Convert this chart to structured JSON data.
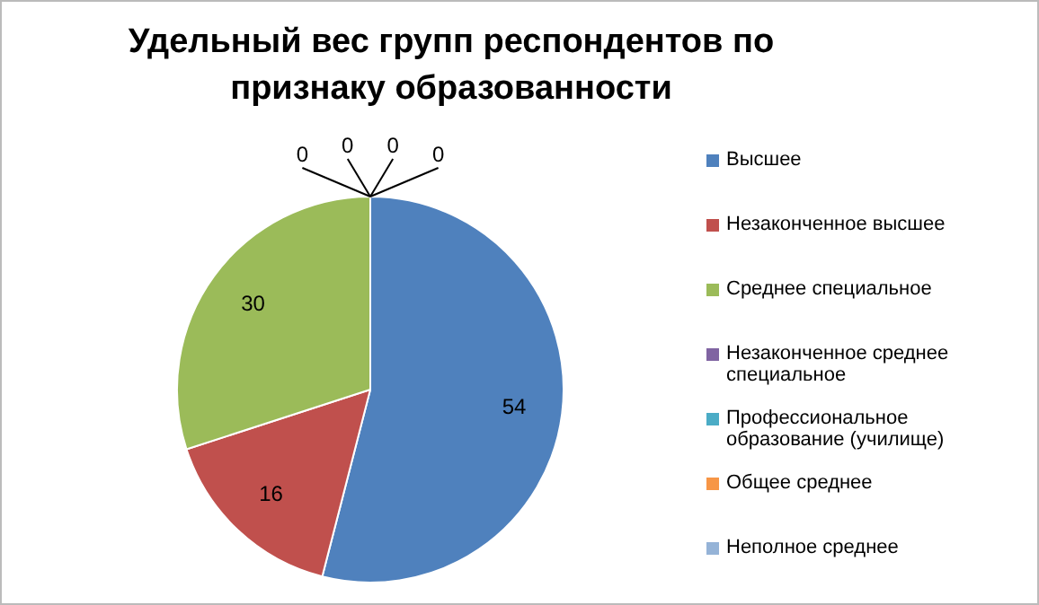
{
  "chart_data": {
    "type": "pie",
    "title": "Удельный вес групп респондентов по признаку образованности",
    "categories": [
      "Высшее",
      "Незаконченное высшее",
      "Среднее специальное",
      "Незаконченное среднее специальное",
      "Профессиональное образование (училище)",
      "Общее среднее",
      "Неполное среднее"
    ],
    "values": [
      54,
      16,
      30,
      0,
      0,
      0,
      0
    ],
    "colors": [
      "#4f81bd",
      "#c0504d",
      "#9bbb59",
      "#8064a2",
      "#4bacc6",
      "#f79646",
      "#95b3d7"
    ],
    "value_labels": [
      "54",
      "16",
      "30",
      "0",
      "0",
      "0",
      "0"
    ],
    "legend": "right"
  }
}
